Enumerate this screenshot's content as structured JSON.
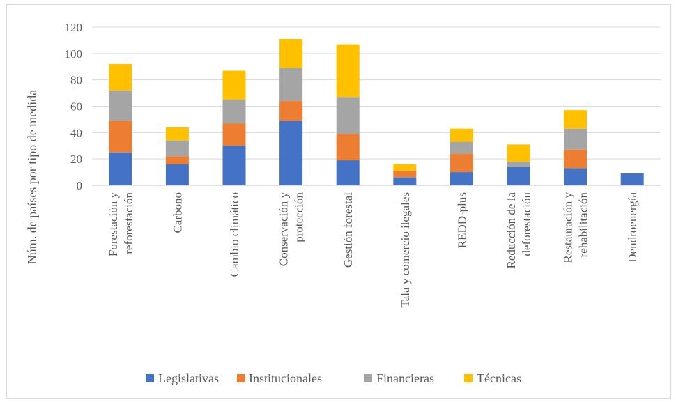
{
  "chart_data": {
    "type": "bar",
    "stacked": true,
    "title": "",
    "xlabel": "",
    "ylabel": "Núm. de países por tipo de medida",
    "ylim": [
      0,
      120
    ],
    "yticks": [
      0,
      20,
      40,
      60,
      80,
      100,
      120
    ],
    "grid": true,
    "legend_position": "bottom",
    "categories": [
      [
        "Forestación y",
        "reforestación"
      ],
      [
        "Carbono"
      ],
      [
        "Cambio climático"
      ],
      [
        "Conservación y",
        "protección"
      ],
      [
        "Gestión forestal"
      ],
      [
        "Tala y comercio ilegales"
      ],
      [
        "REDD-plus"
      ],
      [
        "Reducción de la",
        "deforestación"
      ],
      [
        "Restauración y",
        "rehabilitación"
      ],
      [
        "Dendroenergía"
      ]
    ],
    "series": [
      {
        "name": "Legislativas",
        "color": "#4472c4",
        "values": [
          25,
          16,
          30,
          49,
          19,
          6,
          10,
          14,
          13,
          9
        ]
      },
      {
        "name": "Institucionales",
        "color": "#ed7d31",
        "values": [
          24,
          6,
          17,
          15,
          20,
          5,
          14,
          0,
          14,
          0
        ]
      },
      {
        "name": "Financieras",
        "color": "#a5a5a5",
        "values": [
          23,
          12,
          18,
          25,
          28,
          0,
          9,
          4,
          16,
          0
        ]
      },
      {
        "name": "Técnicas",
        "color": "#ffc000",
        "values": [
          20,
          10,
          22,
          22,
          40,
          5,
          10,
          13,
          14,
          0
        ]
      }
    ]
  }
}
